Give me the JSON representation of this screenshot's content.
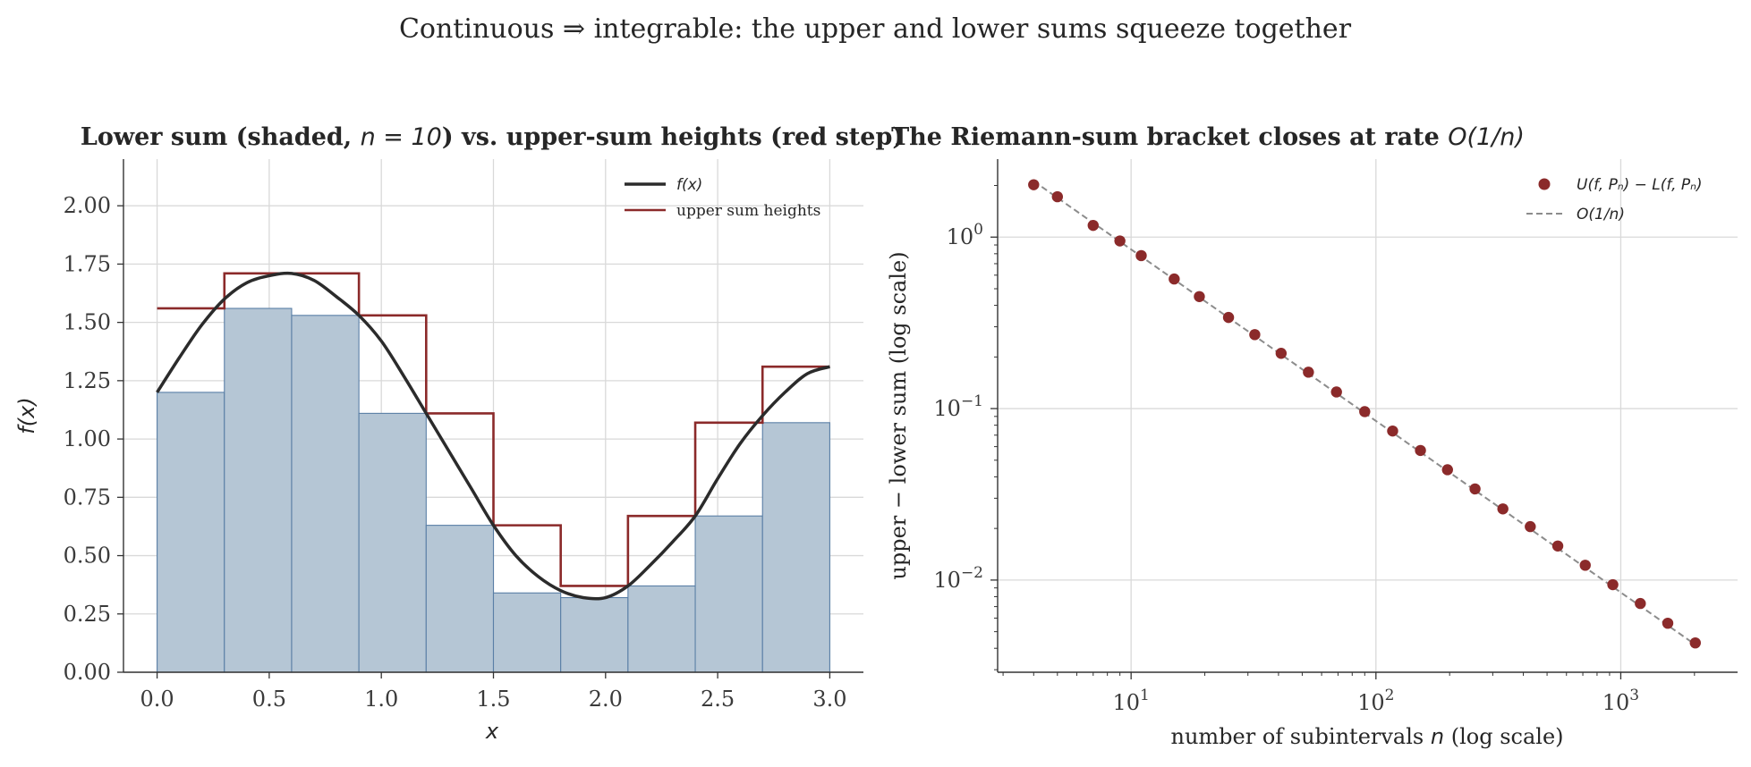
{
  "suptitle": "Continuous ⇒ integrable: the upper and lower sums squeeze together",
  "colors": {
    "curve": "#2b2b2b",
    "upper": "#8b2a2a",
    "lower_fill": "#b5c6d5",
    "lower_edge": "#5a7fa6",
    "points": "#8b2a2a",
    "ref_line": "#8c8c8c"
  },
  "left": {
    "title_plain": "Lower sum (shaded, ",
    "title_math": "n = 10",
    "title_rest": ") vs. upper-sum heights (red step)",
    "xlabel": "x",
    "ylabel": "f(x)",
    "legend": {
      "curve": "f(x)",
      "upper": "upper sum heights"
    }
  },
  "right": {
    "title_plain": "The Riemann-sum bracket closes at rate ",
    "title_math": "O(1/n)",
    "xlabel_plain": "number of subintervals ",
    "xlabel_math": "n",
    "xlabel_rest": " (log scale)",
    "ylabel": "upper − lower sum (log scale)",
    "legend": {
      "points": "U(f, Pₙ) − L(f, Pₙ)",
      "line": "O(1/n)"
    }
  },
  "chart_data": [
    {
      "type": "bar",
      "title": "Lower sum (shaded, n = 10) vs. upper-sum heights (red step)",
      "xlabel": "x",
      "ylabel": "f(x)",
      "xlim": [
        -0.15,
        3.15
      ],
      "ylim": [
        0,
        2.2
      ],
      "xticks": [
        0.0,
        0.5,
        1.0,
        1.5,
        2.0,
        2.5,
        3.0
      ],
      "xtick_labels": [
        "0.0",
        "0.5",
        "1.0",
        "1.5",
        "2.0",
        "2.5",
        "3.0"
      ],
      "yticks": [
        0.0,
        0.25,
        0.5,
        0.75,
        1.0,
        1.25,
        1.5,
        1.75,
        2.0
      ],
      "ytick_labels": [
        "0.00",
        "0.25",
        "0.50",
        "0.75",
        "1.00",
        "1.25",
        "1.50",
        "1.75",
        "2.00"
      ],
      "grid": true,
      "legend_position": "upper-right",
      "bin_edges": [
        0.0,
        0.3,
        0.6,
        0.9,
        1.2,
        1.5,
        1.8,
        2.1,
        2.4,
        2.7,
        3.0
      ],
      "lower_sum_heights": [
        1.2,
        1.56,
        1.53,
        1.11,
        0.63,
        0.34,
        0.32,
        0.37,
        0.67,
        1.07
      ],
      "upper_sum_heights": [
        1.56,
        1.71,
        1.71,
        1.53,
        1.11,
        0.63,
        0.37,
        0.67,
        1.07,
        1.31
      ],
      "curve": {
        "name": "f(x)",
        "x": [
          0.0,
          0.1,
          0.2,
          0.3,
          0.4,
          0.5,
          0.6,
          0.7,
          0.8,
          0.9,
          1.0,
          1.1,
          1.2,
          1.3,
          1.4,
          1.5,
          1.6,
          1.7,
          1.8,
          1.9,
          2.0,
          2.1,
          2.2,
          2.3,
          2.4,
          2.5,
          2.6,
          2.7,
          2.8,
          2.9,
          3.0
        ],
        "y": [
          1.2,
          1.35,
          1.49,
          1.6,
          1.67,
          1.7,
          1.71,
          1.68,
          1.61,
          1.53,
          1.42,
          1.27,
          1.11,
          0.95,
          0.79,
          0.63,
          0.5,
          0.41,
          0.35,
          0.32,
          0.32,
          0.37,
          0.46,
          0.56,
          0.67,
          0.83,
          0.98,
          1.1,
          1.2,
          1.28,
          1.31
        ]
      },
      "series": [
        {
          "name": "f(x)"
        },
        {
          "name": "upper sum heights"
        }
      ]
    },
    {
      "type": "scatter",
      "title": "The Riemann-sum bracket closes at rate O(1/n)",
      "xlabel": "number of subintervals n (log scale)",
      "ylabel": "upper − lower sum (log scale)",
      "xscale": "log",
      "yscale": "log",
      "xlim": [
        2.85,
        3000
      ],
      "ylim": [
        0.0029,
        2.85
      ],
      "xticks": [
        10,
        100,
        1000
      ],
      "xtick_labels": [
        "10^1",
        "10^2",
        "10^3"
      ],
      "yticks": [
        1,
        0.1,
        0.01
      ],
      "ytick_labels": [
        "10^0",
        "10^-1",
        "10^-2"
      ],
      "grid": true,
      "legend_position": "upper-right",
      "series": [
        {
          "name": "U(f, Pₙ) − L(f, Pₙ)",
          "x": [
            4,
            5,
            7,
            9,
            11,
            15,
            19,
            25,
            32,
            41,
            53,
            69,
            90,
            117,
            152,
            196,
            254,
            330,
            427,
            553,
            716,
            928,
            1202,
            1556,
            2016
          ],
          "y": [
            2.02,
            1.72,
            1.17,
            0.95,
            0.78,
            0.57,
            0.45,
            0.34,
            0.27,
            0.21,
            0.163,
            0.125,
            0.096,
            0.074,
            0.057,
            0.044,
            0.034,
            0.026,
            0.0205,
            0.0158,
            0.0122,
            0.0094,
            0.0073,
            0.0056,
            0.0043
          ]
        },
        {
          "name": "O(1/n)",
          "x": [
            4,
            2016
          ],
          "y": [
            2.12,
            0.0042
          ]
        }
      ]
    }
  ]
}
